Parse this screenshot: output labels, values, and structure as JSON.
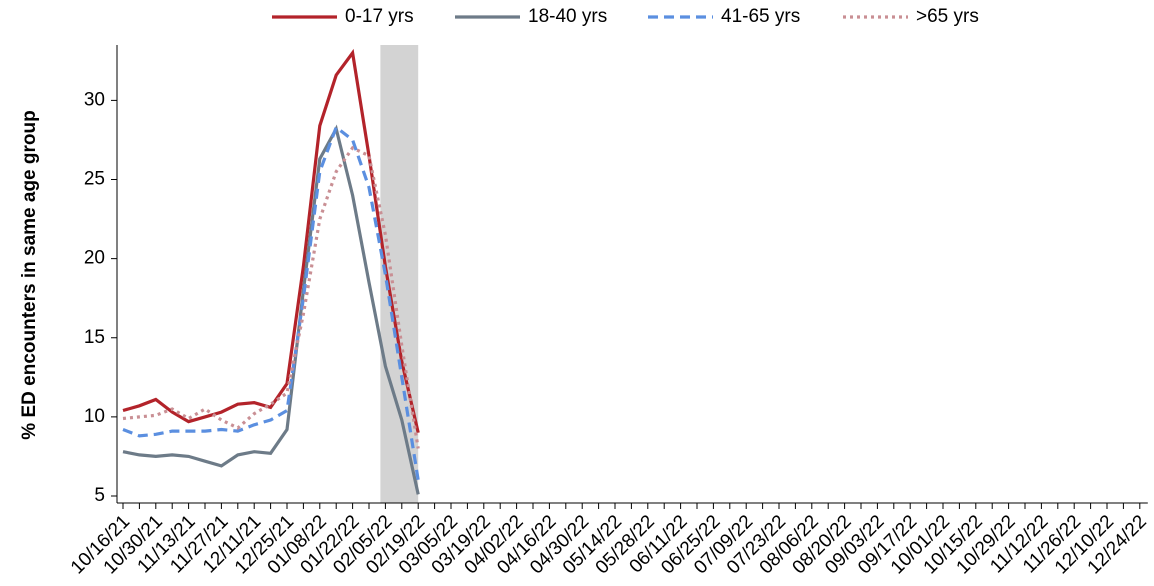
{
  "chart_data": {
    "type": "line",
    "y_label": "% ED encounters in same age group",
    "categories": [
      "10/16/21",
      null,
      "10/30/21",
      null,
      "11/13/21",
      null,
      "11/27/21",
      null,
      "12/11/21",
      null,
      "12/25/21",
      null,
      "01/08/22",
      null,
      "01/22/22",
      null,
      "02/05/22",
      null,
      "02/19/22",
      null,
      "03/05/22",
      null,
      "03/19/22",
      null,
      "04/02/22",
      null,
      "04/16/22",
      null,
      "04/30/22",
      null,
      "05/14/22",
      null,
      "05/28/22",
      null,
      "06/11/22",
      null,
      "06/25/22",
      null,
      "07/09/22",
      null,
      "07/23/22",
      null,
      "08/06/22",
      null,
      "08/20/22",
      null,
      "09/03/22",
      null,
      "09/17/22",
      null,
      "10/01/22",
      null,
      "10/15/22",
      null,
      "10/29/22",
      null,
      "11/12/22",
      null,
      "11/26/22",
      null,
      "12/10/22",
      null,
      "12/24/22"
    ],
    "highlight": [
      "02/05/22",
      "02/19/22"
    ],
    "highlight_color": "#d3d3d3",
    "ylim": [
      5,
      33.5
    ],
    "yticks": [
      5,
      10,
      15,
      20,
      25,
      30
    ],
    "series": [
      {
        "name": "0-17 yrs",
        "color": "#b3232a",
        "dash": "solid",
        "values": [
          10.4,
          10.7,
          11.1,
          10.3,
          9.7,
          10.0,
          10.3,
          10.8,
          10.9,
          10.6,
          12.1,
          19.5,
          28.4,
          31.6,
          33.0,
          26.5,
          19.5,
          13.5,
          9.0,
          null,
          null,
          null,
          null,
          null,
          null,
          null,
          null,
          null,
          null,
          null,
          null,
          null,
          null,
          null,
          null,
          null,
          null,
          null,
          null,
          null,
          null,
          null,
          null,
          null,
          null,
          null,
          null,
          null,
          null,
          null,
          null,
          null,
          null,
          null,
          null,
          null,
          null,
          null,
          null,
          null,
          null,
          null,
          null
        ]
      },
      {
        "name": "18-40 yrs",
        "color": "#6d7b88",
        "dash": "solid",
        "values": [
          7.8,
          7.6,
          7.5,
          7.6,
          7.5,
          7.2,
          6.9,
          7.6,
          7.8,
          7.7,
          9.2,
          18.0,
          26.3,
          28.2,
          24.0,
          18.5,
          13.2,
          9.8,
          5.1,
          null,
          null,
          null,
          null,
          null,
          null,
          null,
          null,
          null,
          null,
          null,
          null,
          null,
          null,
          null,
          null,
          null,
          null,
          null,
          null,
          null,
          null,
          null,
          null,
          null,
          null,
          null,
          null,
          null,
          null,
          null,
          null,
          null,
          null,
          null,
          null,
          null,
          null,
          null,
          null,
          null,
          null,
          null,
          null
        ]
      },
      {
        "name": "41-65 yrs",
        "color": "#5b8fe0",
        "dash": "dashed",
        "values": [
          9.2,
          8.8,
          8.9,
          9.1,
          9.1,
          9.1,
          9.2,
          9.1,
          9.5,
          9.8,
          10.4,
          17.5,
          25.5,
          28.3,
          27.5,
          24.5,
          19.0,
          12.5,
          6.0,
          null,
          null,
          null,
          null,
          null,
          null,
          null,
          null,
          null,
          null,
          null,
          null,
          null,
          null,
          null,
          null,
          null,
          null,
          null,
          null,
          null,
          null,
          null,
          null,
          null,
          null,
          null,
          null,
          null,
          null,
          null,
          null,
          null,
          null,
          null,
          null,
          null,
          null,
          null,
          null,
          null,
          null,
          null,
          null
        ]
      },
      {
        "name": ">65 yrs",
        "color": "#c98f94",
        "dash": "dotted",
        "values": [
          9.9,
          10.0,
          10.1,
          10.5,
          9.9,
          10.5,
          9.8,
          9.3,
          10.2,
          10.8,
          11.5,
          16.5,
          22.5,
          25.5,
          27.0,
          26.5,
          21.5,
          14.5,
          8.0,
          null,
          null,
          null,
          null,
          null,
          null,
          null,
          null,
          null,
          null,
          null,
          null,
          null,
          null,
          null,
          null,
          null,
          null,
          null,
          null,
          null,
          null,
          null,
          null,
          null,
          null,
          null,
          null,
          null,
          null,
          null,
          null,
          null,
          null,
          null,
          null,
          null,
          null,
          null,
          null,
          null,
          null,
          null,
          null
        ]
      }
    ]
  }
}
